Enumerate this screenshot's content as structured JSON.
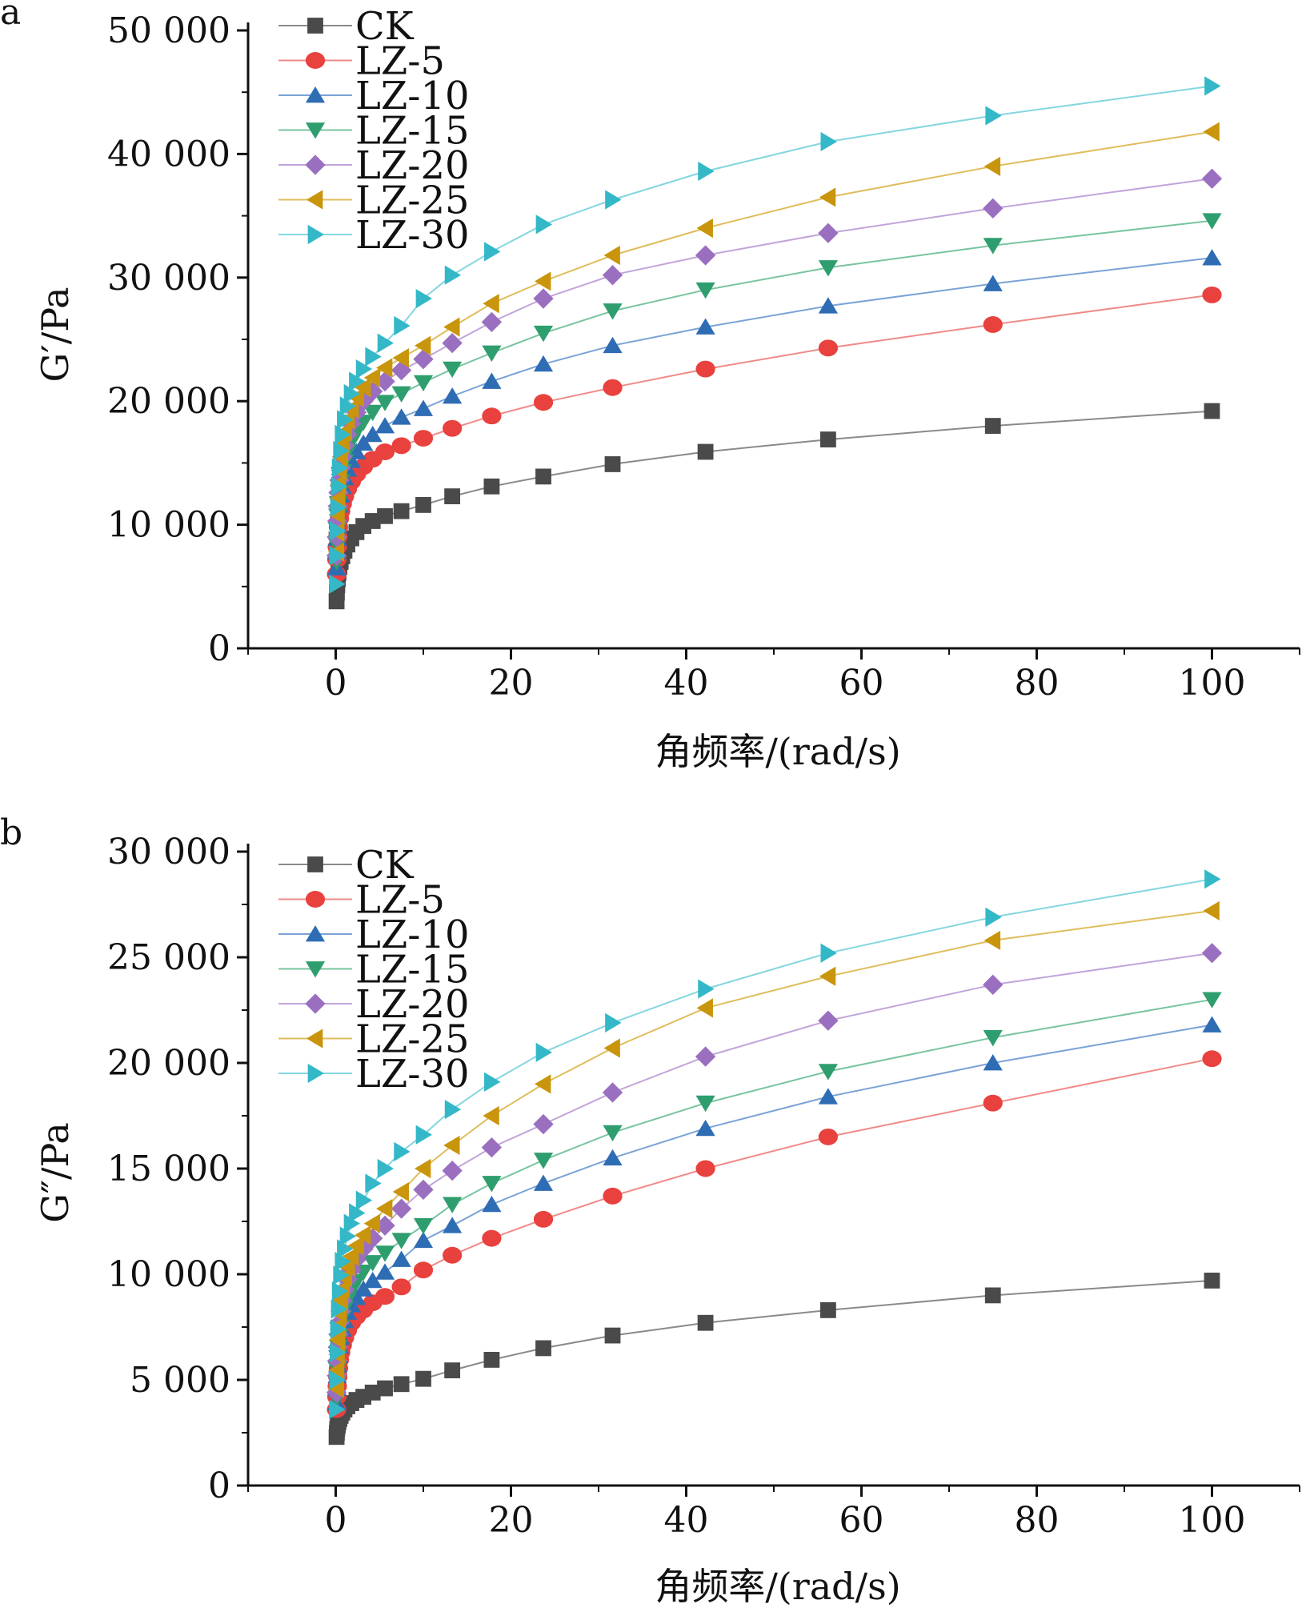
{
  "chart_data": [
    {
      "type": "line",
      "panel_label": "a",
      "ylabel": "G′/Pa",
      "xlabel": "角频率/(rad/s)",
      "xlim": [
        -10,
        110
      ],
      "ylim": [
        0,
        50000
      ],
      "xticks": [
        0,
        20,
        40,
        60,
        80,
        100
      ],
      "xtick_labels": [
        "0",
        "20",
        "40",
        "60",
        "80",
        "100"
      ],
      "yticks": [
        0,
        10000,
        20000,
        30000,
        40000,
        50000
      ],
      "ytick_labels": [
        "0",
        "10 000",
        "20 000",
        "30 000",
        "40 000",
        "50 000"
      ],
      "legend_position": "top-left",
      "x": [
        0.1,
        0.133,
        0.178,
        0.237,
        0.316,
        0.422,
        0.562,
        0.75,
        1,
        1.33,
        1.78,
        2.37,
        3.16,
        4.22,
        5.62,
        7.5,
        10,
        13.3,
        17.8,
        23.7,
        31.6,
        42.2,
        56.2,
        75,
        100
      ],
      "series": [
        {
          "name": "CK",
          "marker": "square",
          "color": "#4a4a4a",
          "line_color": "#8a8a8a",
          "values": [
            3800,
            4500,
            5100,
            5600,
            6100,
            6600,
            7000,
            7450,
            7900,
            8400,
            8900,
            9400,
            9900,
            10300,
            10700,
            11100,
            11600,
            12300,
            13100,
            13900,
            14900,
            15900,
            16900,
            18000,
            19200
          ]
        },
        {
          "name": "LZ-5",
          "marker": "circle",
          "color": "#e8413e",
          "line_color": "#f08a88",
          "values": [
            6000,
            7200,
            8200,
            9000,
            9800,
            10500,
            11100,
            11700,
            12300,
            12900,
            13500,
            14100,
            14700,
            15300,
            15900,
            16400,
            17000,
            17800,
            18800,
            19900,
            21100,
            22600,
            24300,
            26200,
            28600
          ]
        },
        {
          "name": "LZ-10",
          "marker": "triangle-up",
          "color": "#2e6db4",
          "line_color": "#7aa3d6",
          "values": [
            6500,
            7800,
            8900,
            9900,
            10800,
            11600,
            12400,
            13100,
            13800,
            14500,
            15200,
            15900,
            16600,
            17300,
            18000,
            18700,
            19400,
            20400,
            21600,
            23000,
            24500,
            26000,
            27700,
            29500,
            31600
          ]
        },
        {
          "name": "LZ-15",
          "marker": "triangle-down",
          "color": "#2f9e6e",
          "line_color": "#79c49f",
          "values": [
            7000,
            8400,
            9600,
            10700,
            11700,
            12600,
            13500,
            14300,
            15100,
            15900,
            16700,
            17500,
            18300,
            19100,
            19900,
            20600,
            21500,
            22600,
            23900,
            25500,
            27300,
            29000,
            30800,
            32600,
            34600
          ]
        },
        {
          "name": "LZ-20",
          "marker": "diamond",
          "color": "#9b6fc0",
          "line_color": "#c1a5da",
          "values": [
            7500,
            9000,
            10300,
            11500,
            12600,
            13600,
            14600,
            15500,
            16400,
            17300,
            18200,
            19100,
            20000,
            20800,
            21600,
            22500,
            23400,
            24700,
            26400,
            28300,
            30200,
            31800,
            33600,
            35600,
            38000
          ]
        },
        {
          "name": "LZ-25",
          "marker": "triangle-left",
          "color": "#c9950c",
          "line_color": "#dfbd5c",
          "values": [
            7800,
            9400,
            10800,
            12100,
            13300,
            14400,
            15500,
            16500,
            17500,
            18500,
            19400,
            20300,
            21100,
            21900,
            22700,
            23500,
            24500,
            26000,
            27900,
            29700,
            31800,
            34000,
            36500,
            39000,
            41800
          ]
        },
        {
          "name": "LZ-30",
          "marker": "triangle-right",
          "color": "#34b8c8",
          "line_color": "#84d6df",
          "values": [
            5200,
            7500,
            9500,
            11400,
            13100,
            14600,
            16000,
            17300,
            18500,
            19600,
            20600,
            21600,
            22600,
            23600,
            24700,
            26100,
            28300,
            30200,
            32100,
            34300,
            36300,
            38600,
            41000,
            43100,
            45500
          ]
        }
      ],
      "legend_labels": [
        "CK",
        "LZ-5",
        "LZ-10",
        "LZ-15",
        "LZ-20",
        "LZ-25",
        "LZ-30"
      ]
    },
    {
      "type": "line",
      "panel_label": "b",
      "ylabel": "G″/Pa",
      "xlabel": "角频率/(rad/s)",
      "xlim": [
        -10,
        110
      ],
      "ylim": [
        0,
        30000
      ],
      "xticks": [
        0,
        20,
        40,
        60,
        80,
        100
      ],
      "xtick_labels": [
        "0",
        "20",
        "40",
        "60",
        "80",
        "100"
      ],
      "yticks": [
        0,
        5000,
        10000,
        15000,
        20000,
        25000,
        30000
      ],
      "ytick_labels": [
        "0",
        "5 000",
        "10 000",
        "15 000",
        "20 000",
        "25 000",
        "30 000"
      ],
      "legend_position": "top-left",
      "x": [
        0.1,
        0.133,
        0.178,
        0.237,
        0.316,
        0.422,
        0.562,
        0.75,
        1,
        1.33,
        1.78,
        2.37,
        3.16,
        4.22,
        5.62,
        7.5,
        10,
        13.3,
        17.8,
        23.7,
        31.6,
        42.2,
        56.2,
        75,
        100
      ],
      "series": [
        {
          "name": "CK",
          "marker": "square",
          "color": "#4a4a4a",
          "line_color": "#8a8a8a",
          "values": [
            2300,
            2500,
            2700,
            2850,
            3000,
            3150,
            3300,
            3450,
            3600,
            3750,
            3900,
            4050,
            4200,
            4400,
            4600,
            4800,
            5050,
            5450,
            5950,
            6500,
            7100,
            7700,
            8300,
            9000,
            9700
          ]
        },
        {
          "name": "LZ-5",
          "marker": "circle",
          "color": "#e8413e",
          "line_color": "#f08a88",
          "values": [
            3600,
            4200,
            4700,
            5150,
            5550,
            5950,
            6300,
            6650,
            7000,
            7350,
            7700,
            8000,
            8300,
            8650,
            8950,
            9400,
            10200,
            10900,
            11700,
            12600,
            13700,
            15000,
            16500,
            18100,
            20200
          ]
        },
        {
          "name": "LZ-10",
          "marker": "triangle-up",
          "color": "#2e6db4",
          "line_color": "#7aa3d6",
          "values": [
            3900,
            4600,
            5200,
            5700,
            6150,
            6600,
            7000,
            7400,
            7800,
            8200,
            8550,
            8900,
            9300,
            9700,
            10100,
            10700,
            11600,
            12300,
            13300,
            14300,
            15500,
            16900,
            18400,
            20000,
            21800
          ]
        },
        {
          "name": "LZ-15",
          "marker": "triangle-down",
          "color": "#2f9e6e",
          "line_color": "#79c49f",
          "values": [
            4100,
            4850,
            5500,
            6050,
            6550,
            7050,
            7500,
            7950,
            8400,
            8800,
            9200,
            9650,
            10100,
            10550,
            11000,
            11600,
            12300,
            13300,
            14300,
            15400,
            16700,
            18100,
            19600,
            21200,
            23000
          ]
        },
        {
          "name": "LZ-20",
          "marker": "diamond",
          "color": "#9b6fc0",
          "line_color": "#c1a5da",
          "values": [
            4400,
            5200,
            5900,
            6550,
            7150,
            7700,
            8250,
            8750,
            9250,
            9750,
            10200,
            10700,
            11200,
            11700,
            12300,
            13100,
            14000,
            14900,
            16000,
            17100,
            18600,
            20300,
            22000,
            23700,
            25200
          ]
        },
        {
          "name": "LZ-25",
          "marker": "triangle-left",
          "color": "#c9950c",
          "line_color": "#dfbd5c",
          "values": [
            4600,
            5450,
            6200,
            6900,
            7550,
            8150,
            8750,
            9300,
            9850,
            10350,
            10850,
            11350,
            11850,
            12400,
            13100,
            13900,
            15000,
            16100,
            17500,
            19000,
            20700,
            22600,
            24100,
            25800,
            27200
          ]
        },
        {
          "name": "LZ-30",
          "marker": "triangle-right",
          "color": "#34b8c8",
          "line_color": "#84d6df",
          "values": [
            3600,
            5000,
            6300,
            7400,
            8350,
            9200,
            9950,
            10600,
            11200,
            11800,
            12400,
            12900,
            13500,
            14300,
            15000,
            15800,
            16600,
            17800,
            19100,
            20500,
            21900,
            23500,
            25200,
            26900,
            28700
          ]
        }
      ],
      "legend_labels": [
        "CK",
        "LZ-5",
        "LZ-10",
        "LZ-15",
        "LZ-20",
        "LZ-25",
        "LZ-30"
      ]
    }
  ]
}
